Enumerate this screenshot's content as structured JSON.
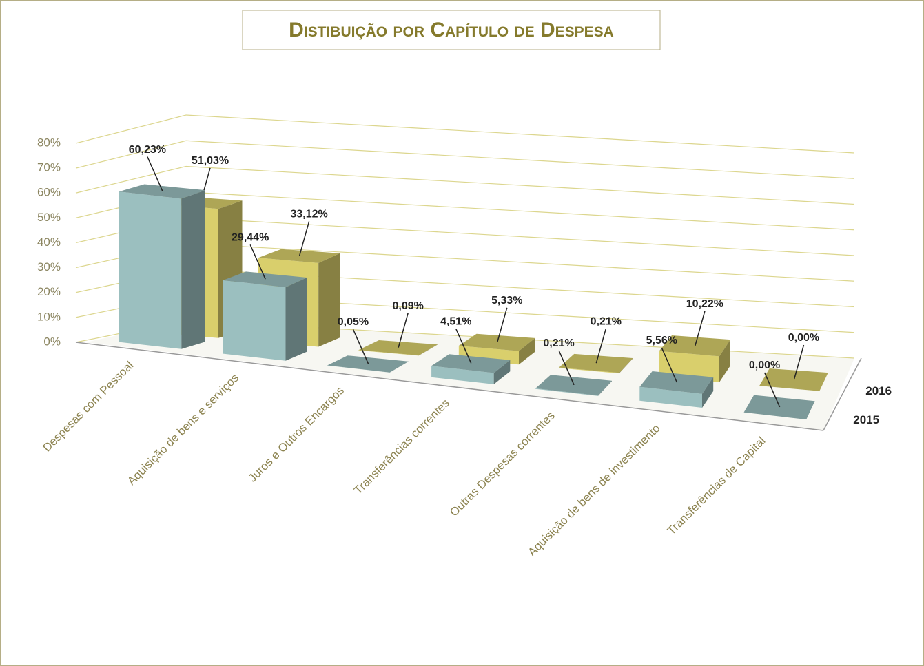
{
  "chart_data": {
    "type": "bar3d",
    "title": "Distibuição por Capítulo de Despesa",
    "categories": [
      "Despesas com Pessoal",
      "Aquisição de bens e serviços",
      "Juros e Outros Encargos",
      "Transferências correntes",
      "Outras Despesas correntes",
      "Aquisição de bens de investimento",
      "Transferências de Capital"
    ],
    "series": [
      {
        "name": "2015",
        "color": "#9bbfbf",
        "values": [
          60.23,
          29.44,
          0.05,
          4.51,
          0.21,
          5.56,
          0.0
        ],
        "value_labels": [
          "60,23%",
          "29,44%",
          "0,05%",
          "4,51%",
          "0,21%",
          "5,56%",
          "0,00%"
        ]
      },
      {
        "name": "2016",
        "color": "#d9cf6c",
        "values": [
          51.03,
          33.12,
          0.09,
          5.33,
          0.21,
          10.22,
          0.0
        ],
        "value_labels": [
          "51,03%",
          "33,12%",
          "0,09%",
          "5,33%",
          "0,21%",
          "10,22%",
          "0,00%"
        ]
      }
    ],
    "ylim": [
      0,
      80
    ],
    "yticks": [
      {
        "value": 0,
        "label": "0%"
      },
      {
        "value": 10,
        "label": "10%"
      },
      {
        "value": 20,
        "label": "20%"
      },
      {
        "value": 30,
        "label": "30%"
      },
      {
        "value": 40,
        "label": "40%"
      },
      {
        "value": 50,
        "label": "50%"
      },
      {
        "value": 60,
        "label": "60%"
      },
      {
        "value": 70,
        "label": "70%"
      },
      {
        "value": 80,
        "label": "80%"
      }
    ],
    "grid": true
  }
}
